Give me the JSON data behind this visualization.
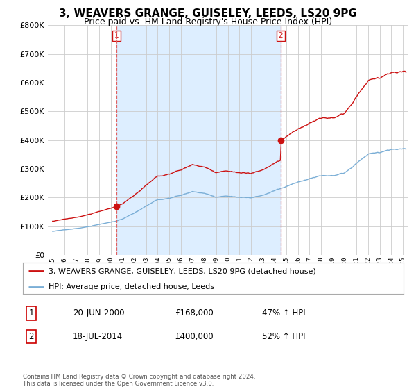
{
  "title": "3, WEAVERS GRANGE, GUISELEY, LEEDS, LS20 9PG",
  "subtitle": "Price paid vs. HM Land Registry's House Price Index (HPI)",
  "legend_line1": "3, WEAVERS GRANGE, GUISELEY, LEEDS, LS20 9PG (detached house)",
  "legend_line2": "HPI: Average price, detached house, Leeds",
  "footnote": "Contains HM Land Registry data © Crown copyright and database right 2024.\nThis data is licensed under the Open Government Licence v3.0.",
  "sale1_label": "1",
  "sale1_date": "20-JUN-2000",
  "sale1_price": "£168,000",
  "sale1_hpi": "47% ↑ HPI",
  "sale2_label": "2",
  "sale2_date": "18-JUL-2014",
  "sale2_price": "£400,000",
  "sale2_hpi": "52% ↑ HPI",
  "sale1_x": 2000.47,
  "sale1_y": 168000,
  "sale2_x": 2014.54,
  "sale2_y": 400000,
  "hpi_color": "#7aaed6",
  "price_color": "#cc1111",
  "vline_color": "#e06060",
  "shade_color": "#ddeeff",
  "marker_color": "#cc1111",
  "background_color": "#ffffff",
  "grid_color": "#cccccc",
  "ylim": [
    0,
    800000
  ],
  "xlim_left": 1994.6,
  "xlim_right": 2025.4,
  "title_fontsize": 11,
  "subtitle_fontsize": 9
}
